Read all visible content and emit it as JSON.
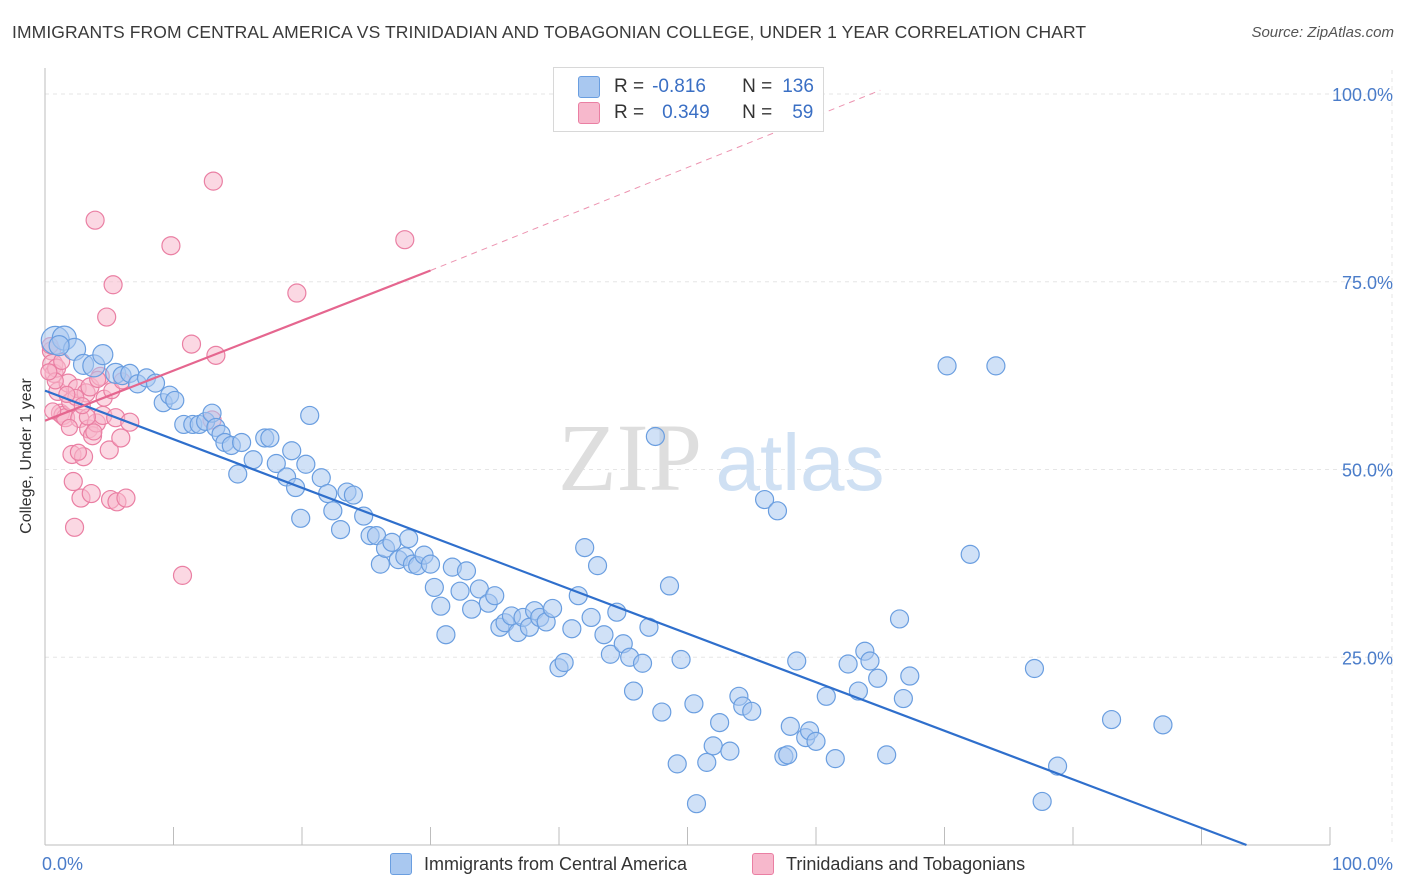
{
  "header": {
    "title": "IMMIGRANTS FROM CENTRAL AMERICA VS TRINIDADIAN AND TOBAGONIAN COLLEGE, UNDER 1 YEAR CORRELATION CHART",
    "source": "Source: ZipAtlas.com"
  },
  "legend": {
    "blue": {
      "r_label": "R =",
      "r_value": "-0.816",
      "n_label": "N =",
      "n_value": "136"
    },
    "pink": {
      "r_label": "R =",
      "r_value": "0.349",
      "n_label": "N =",
      "n_value": "59"
    }
  },
  "colors": {
    "blue_fill": "#a9c8f0",
    "blue_stroke": "#6a9ee0",
    "blue_line": "#2f6fcc",
    "pink_fill": "#f7b8cc",
    "pink_stroke": "#ea7fa3",
    "pink_line": "#e5668f",
    "axis_text": "#4a7cc9"
  },
  "watermark": {
    "zip": "ZIP",
    "atlas": "atlas"
  },
  "chart_data": {
    "type": "scatter",
    "title": "IMMIGRANTS FROM CENTRAL AMERICA VS TRINIDADIAN AND TOBAGONIAN COLLEGE, UNDER 1 YEAR CORRELATION CHART",
    "xlabel": "",
    "ylabel": "College, Under 1 year",
    "xlim": [
      0,
      100
    ],
    "ylim": [
      0,
      102
    ],
    "x_ticks": [
      "0.0%",
      "100.0%"
    ],
    "y_ticks": [
      "25.0%",
      "50.0%",
      "75.0%",
      "100.0%"
    ],
    "y_tick_values": [
      25,
      50,
      75,
      100
    ],
    "grid": true,
    "legend_position": "top-center",
    "series": [
      {
        "name": "Immigrants from Central America",
        "color": "#6a9ee0",
        "trend": {
          "x0": 0,
          "y0": 60.5,
          "x1": 93.5,
          "y1": 0
        },
        "points": [
          [
            0.8,
            67.2,
            14
          ],
          [
            1.5,
            67.5,
            12
          ],
          [
            2.3,
            66.0,
            11
          ],
          [
            1.1,
            66.5,
            10
          ],
          [
            3.0,
            64.0,
            10
          ],
          [
            3.8,
            63.8,
            11
          ],
          [
            4.5,
            65.3,
            10
          ],
          [
            5.5,
            62.8,
            10
          ],
          [
            6.0,
            62.5,
            9
          ],
          [
            6.6,
            62.8,
            9
          ],
          [
            7.2,
            61.4,
            9
          ],
          [
            7.9,
            62.2,
            9
          ],
          [
            8.6,
            61.5,
            9
          ],
          [
            9.2,
            58.9,
            9
          ],
          [
            9.7,
            59.9,
            9
          ],
          [
            10.1,
            59.2,
            9
          ],
          [
            10.8,
            56.0,
            9
          ],
          [
            11.5,
            56.0,
            9
          ],
          [
            12.0,
            56.0,
            9
          ],
          [
            12.5,
            56.4,
            9
          ],
          [
            13.0,
            57.5,
            9
          ],
          [
            13.3,
            55.6,
            9
          ],
          [
            13.7,
            54.7,
            9
          ],
          [
            14.0,
            53.6,
            9
          ],
          [
            14.5,
            53.2,
            9
          ],
          [
            15.0,
            49.4,
            9
          ],
          [
            15.3,
            53.6,
            9
          ],
          [
            16.2,
            51.3,
            9
          ],
          [
            17.1,
            54.2,
            9
          ],
          [
            17.5,
            54.2,
            9
          ],
          [
            18.0,
            50.8,
            9
          ],
          [
            18.8,
            49.0,
            9
          ],
          [
            19.2,
            52.5,
            9
          ],
          [
            19.5,
            47.6,
            9
          ],
          [
            19.9,
            43.5,
            9
          ],
          [
            20.3,
            50.7,
            9
          ],
          [
            20.6,
            57.2,
            9
          ],
          [
            21.5,
            48.9,
            9
          ],
          [
            22.0,
            46.8,
            9
          ],
          [
            22.4,
            44.5,
            9
          ],
          [
            23.0,
            42.0,
            9
          ],
          [
            23.5,
            47.0,
            9
          ],
          [
            24.0,
            46.6,
            9
          ],
          [
            24.8,
            43.8,
            9
          ],
          [
            25.3,
            41.2,
            9
          ],
          [
            25.8,
            41.2,
            9
          ],
          [
            26.1,
            37.4,
            9
          ],
          [
            26.5,
            39.5,
            9
          ],
          [
            27.0,
            40.3,
            9
          ],
          [
            27.5,
            38.0,
            9
          ],
          [
            28.0,
            38.4,
            9
          ],
          [
            28.3,
            40.8,
            9
          ],
          [
            28.6,
            37.4,
            9
          ],
          [
            29.0,
            37.2,
            9
          ],
          [
            29.5,
            38.6,
            9
          ],
          [
            30.0,
            37.4,
            9
          ],
          [
            30.3,
            34.3,
            9
          ],
          [
            30.8,
            31.8,
            9
          ],
          [
            31.2,
            28.0,
            9
          ],
          [
            31.7,
            37.0,
            9
          ],
          [
            32.3,
            33.8,
            9
          ],
          [
            32.8,
            36.5,
            9
          ],
          [
            33.2,
            31.4,
            9
          ],
          [
            33.8,
            34.1,
            9
          ],
          [
            34.5,
            32.2,
            9
          ],
          [
            35.0,
            33.2,
            9
          ],
          [
            35.4,
            29.0,
            9
          ],
          [
            35.8,
            29.6,
            9
          ],
          [
            36.3,
            30.5,
            9
          ],
          [
            36.8,
            28.3,
            9
          ],
          [
            37.2,
            30.3,
            9
          ],
          [
            37.7,
            29.0,
            9
          ],
          [
            38.1,
            31.2,
            9
          ],
          [
            38.5,
            30.3,
            9
          ],
          [
            39.0,
            29.7,
            9
          ],
          [
            39.5,
            31.5,
            9
          ],
          [
            40.0,
            23.6,
            9
          ],
          [
            40.4,
            24.3,
            9
          ],
          [
            41.0,
            28.8,
            9
          ],
          [
            41.5,
            33.2,
            9
          ],
          [
            42.0,
            39.6,
            9
          ],
          [
            42.5,
            30.3,
            9
          ],
          [
            43.0,
            37.2,
            9
          ],
          [
            43.5,
            28.0,
            9
          ],
          [
            44.0,
            25.4,
            9
          ],
          [
            44.5,
            31.0,
            9
          ],
          [
            45.0,
            26.8,
            9
          ],
          [
            45.5,
            25.0,
            9
          ],
          [
            45.8,
            20.5,
            9
          ],
          [
            46.5,
            24.2,
            9
          ],
          [
            47.0,
            29.0,
            9
          ],
          [
            47.5,
            54.4,
            9
          ],
          [
            48.0,
            17.7,
            9
          ],
          [
            48.6,
            34.5,
            9
          ],
          [
            49.2,
            10.8,
            9
          ],
          [
            49.5,
            24.7,
            9
          ],
          [
            50.5,
            18.8,
            9
          ],
          [
            50.7,
            5.5,
            9
          ],
          [
            51.5,
            11.0,
            9
          ],
          [
            52.0,
            13.2,
            9
          ],
          [
            52.5,
            16.3,
            9
          ],
          [
            53.3,
            12.5,
            9
          ],
          [
            54.0,
            19.8,
            9
          ],
          [
            54.3,
            18.5,
            9
          ],
          [
            55.0,
            17.8,
            9
          ],
          [
            56.0,
            46.0,
            9
          ],
          [
            57.0,
            44.5,
            9
          ],
          [
            57.5,
            11.8,
            9
          ],
          [
            57.8,
            12.0,
            9
          ],
          [
            58.0,
            15.8,
            9
          ],
          [
            58.5,
            24.5,
            9
          ],
          [
            59.2,
            14.3,
            9
          ],
          [
            59.5,
            15.2,
            9
          ],
          [
            60.0,
            13.8,
            9
          ],
          [
            60.8,
            19.8,
            9
          ],
          [
            61.5,
            11.5,
            9
          ],
          [
            62.5,
            24.1,
            9
          ],
          [
            63.3,
            20.5,
            9
          ],
          [
            63.8,
            25.8,
            9
          ],
          [
            64.2,
            24.5,
            9
          ],
          [
            64.8,
            22.2,
            9
          ],
          [
            65.5,
            12.0,
            9
          ],
          [
            66.5,
            30.1,
            9
          ],
          [
            66.8,
            19.5,
            9
          ],
          [
            67.3,
            22.5,
            9
          ],
          [
            70.2,
            63.8,
            9
          ],
          [
            74.0,
            63.8,
            9
          ],
          [
            72.0,
            38.7,
            9
          ],
          [
            77.0,
            23.5,
            9
          ],
          [
            77.6,
            5.8,
            9
          ],
          [
            78.8,
            10.5,
            9
          ],
          [
            83.0,
            16.7,
            9
          ],
          [
            87.0,
            16.0,
            9
          ]
        ]
      },
      {
        "name": "Trinidadians and Tobagonians",
        "color": "#ea7fa3",
        "trend": {
          "x0": 0,
          "y0": 56.5,
          "x1": 30.0,
          "y1": 76.5,
          "dash_x1": 65.0,
          "dash_y1": 100.5
        },
        "points": [
          [
            0.5,
            65.8,
            9
          ],
          [
            0.6,
            64.0,
            10
          ],
          [
            0.7,
            62.8,
            9
          ],
          [
            0.9,
            63.5,
            9
          ],
          [
            1.0,
            60.4,
            9
          ],
          [
            1.2,
            57.5,
            9
          ],
          [
            1.4,
            57.2,
            9
          ],
          [
            1.6,
            56.9,
            9
          ],
          [
            1.8,
            61.5,
            9
          ],
          [
            2.0,
            59.0,
            9
          ],
          [
            2.1,
            52.0,
            9
          ],
          [
            2.2,
            48.4,
            9
          ],
          [
            2.3,
            42.3,
            9
          ],
          [
            2.5,
            60.8,
            9
          ],
          [
            2.7,
            56.8,
            9
          ],
          [
            2.8,
            46.2,
            9
          ],
          [
            3.0,
            51.7,
            9
          ],
          [
            3.2,
            60.2,
            9
          ],
          [
            3.4,
            55.4,
            9
          ],
          [
            3.5,
            61.0,
            9
          ],
          [
            3.6,
            46.8,
            9
          ],
          [
            3.7,
            54.5,
            9
          ],
          [
            3.9,
            83.2,
            9
          ],
          [
            4.0,
            56.2,
            9
          ],
          [
            4.3,
            62.4,
            9
          ],
          [
            4.5,
            57.2,
            9
          ],
          [
            4.8,
            70.3,
            9
          ],
          [
            5.0,
            52.6,
            9
          ],
          [
            5.1,
            46.0,
            9
          ],
          [
            5.3,
            74.6,
            9
          ],
          [
            5.5,
            56.9,
            9
          ],
          [
            5.6,
            45.7,
            9
          ],
          [
            5.9,
            54.2,
            9
          ],
          [
            6.3,
            46.2,
            9
          ],
          [
            6.6,
            56.3,
            9
          ],
          [
            9.8,
            79.8,
            9
          ],
          [
            10.7,
            35.9,
            9
          ],
          [
            11.4,
            66.7,
            9
          ],
          [
            13.0,
            56.6,
            9
          ],
          [
            13.3,
            65.2,
            9
          ],
          [
            13.1,
            88.4,
            9
          ],
          [
            19.6,
            73.5,
            9
          ],
          [
            28.0,
            80.6,
            9
          ],
          [
            0.4,
            66.5,
            8
          ],
          [
            1.3,
            64.4,
            8
          ],
          [
            2.4,
            59.6,
            8
          ],
          [
            3.3,
            57.0,
            8
          ],
          [
            4.1,
            62.0,
            8
          ],
          [
            0.8,
            61.8,
            8
          ],
          [
            1.9,
            55.6,
            8
          ],
          [
            2.6,
            52.3,
            8
          ],
          [
            0.3,
            63.0,
            8
          ],
          [
            1.7,
            60.0,
            8
          ],
          [
            2.9,
            58.5,
            8
          ],
          [
            3.8,
            55.0,
            8
          ],
          [
            4.6,
            59.5,
            8
          ],
          [
            5.2,
            60.5,
            8
          ],
          [
            6.0,
            61.8,
            8
          ],
          [
            0.6,
            57.8,
            8
          ]
        ]
      }
    ]
  }
}
